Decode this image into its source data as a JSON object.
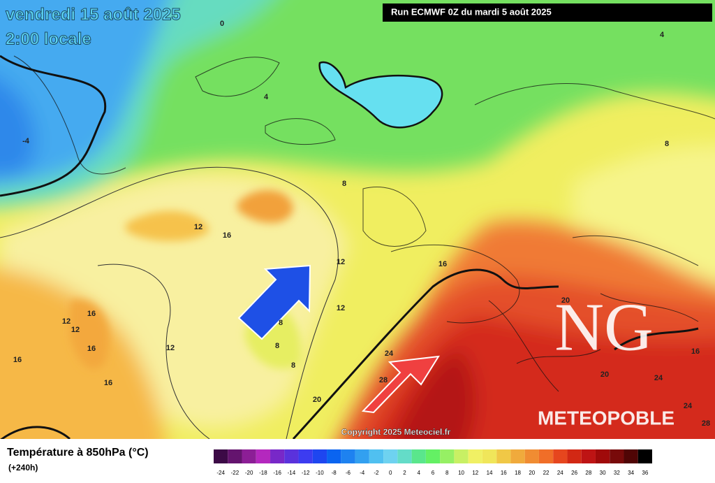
{
  "header": {
    "date": "vendredi 15 août 2025",
    "time": "2:00 locale",
    "run": "Run ECMWF 0Z du mardi 5 août 2025"
  },
  "map": {
    "contour_labels": [
      0,
      4,
      4,
      -4,
      8,
      8,
      12,
      16,
      12,
      16,
      12,
      8,
      8,
      8,
      16,
      12,
      12,
      16,
      16,
      12,
      16,
      20,
      24,
      28,
      20,
      20,
      24,
      16,
      24,
      28
    ],
    "copyright": "Copyright 2025 Meteociel.fr",
    "logo": "NG",
    "brand": "METEOPOBLE"
  },
  "legend": {
    "title": "Température à 850hPa (°C)",
    "lead": "(+240h)",
    "values": [
      -24,
      -22,
      -20,
      -18,
      -16,
      -14,
      -12,
      -10,
      -8,
      -6,
      -4,
      -2,
      0,
      2,
      4,
      6,
      8,
      10,
      12,
      14,
      16,
      18,
      20,
      22,
      24,
      26,
      28,
      30,
      32,
      34,
      36
    ],
    "colors": [
      "#3c0a46",
      "#64146e",
      "#8c1e96",
      "#b428be",
      "#7828c8",
      "#5a32dc",
      "#3c3cf0",
      "#1e46f0",
      "#0a64f0",
      "#1e82f0",
      "#32a0f0",
      "#50c0f0",
      "#6ed2f0",
      "#64dcc8",
      "#5ae68c",
      "#64f064",
      "#96f064",
      "#c8f064",
      "#f0f064",
      "#f0e65a",
      "#f0c846",
      "#f0aa3c",
      "#f08c32",
      "#f06e28",
      "#e6461e",
      "#d22814",
      "#be1414",
      "#a00a0a",
      "#780a0a",
      "#500505",
      "#000000"
    ]
  }
}
